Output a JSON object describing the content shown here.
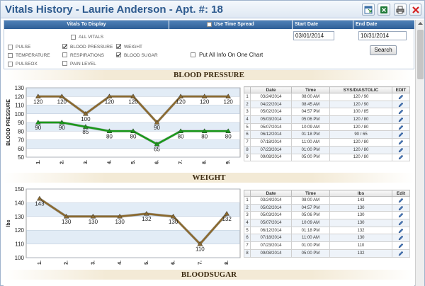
{
  "window": {
    "title": "Vitals History - Laurie Anderson - Apt. #: 18"
  },
  "toolbar": {
    "buttons": [
      "new-window-icon",
      "excel-export-icon",
      "print-icon",
      "save-icon",
      "close-icon"
    ]
  },
  "options": {
    "vitals_header": "Vitals To Display",
    "time_spread_label": "Use Time Spread",
    "start_date_header": "Start Date",
    "end_date_header": "End Date",
    "checkboxes": [
      {
        "label": "ALL VITALS",
        "checked": false
      },
      {
        "label": "PULSE",
        "checked": false
      },
      {
        "label": "BLOOD PRESSURE",
        "checked": true
      },
      {
        "label": "WEIGHT",
        "checked": true
      },
      {
        "label": "TEMPERATURE",
        "checked": false
      },
      {
        "label": "RESPIRATIONS",
        "checked": false
      },
      {
        "label": "BLOOD SUGAR",
        "checked": true
      },
      {
        "label": "PULSEOX",
        "checked": false
      },
      {
        "label": "PAIN LEVEL",
        "checked": false
      }
    ],
    "start_date": "03/01/2014",
    "end_date": "10/31/2014",
    "put_all_label": "Put All Info On One Chart",
    "search_label": "Search"
  },
  "sections": {
    "bp_title": "BLOOD PRESSURE",
    "weight_title": "WEIGHT",
    "sugar_title": "BLOODSUGAR"
  },
  "chart_data": [
    {
      "type": "line",
      "title": "BLOOD PRESSURE",
      "ylabel": "BLOOD PRESSURE",
      "x": [
        "1.",
        "2.",
        "3.",
        "4.",
        "5.",
        "6.",
        "7.",
        "8.",
        "9."
      ],
      "ylim": [
        50,
        130
      ],
      "yticks": [
        50,
        60,
        70,
        80,
        90,
        100,
        110,
        120,
        130
      ],
      "series": [
        {
          "values": [
            120,
            120,
            100,
            120,
            120,
            90,
            120,
            120,
            120
          ],
          "color": "#8b6a2f"
        },
        {
          "values": [
            90,
            90,
            85,
            80,
            80,
            65,
            80,
            80,
            80
          ],
          "color": "#1a9a1a"
        }
      ]
    },
    {
      "type": "line",
      "title": "WEIGHT",
      "ylabel": "lbs",
      "x": [
        "1.",
        "2.",
        "3.",
        "4.",
        "5.",
        "6.",
        "7.",
        "8."
      ],
      "ylim": [
        100,
        150
      ],
      "yticks": [
        100,
        110,
        120,
        130,
        140,
        150
      ],
      "series": [
        {
          "values": [
            143,
            130,
            130,
            130,
            132,
            130,
            110,
            132
          ],
          "color": "#8b6a2f"
        }
      ]
    }
  ],
  "bp_table": {
    "headers": [
      "",
      "Date",
      "Time",
      "SYS/DIASTOLIC",
      "EDIT"
    ],
    "rows": [
      [
        "1",
        "03/24/2014",
        "08:00 AM",
        "120 / 90"
      ],
      [
        "2",
        "04/22/2014",
        "08:45 AM",
        "120 / 90"
      ],
      [
        "3",
        "05/02/2014",
        "04:57 PM",
        "100 / 85"
      ],
      [
        "4",
        "05/03/2014",
        "05:06 PM",
        "120 / 80"
      ],
      [
        "5",
        "05/07/2014",
        "10:09 AM",
        "120 / 80"
      ],
      [
        "6",
        "06/12/2014",
        "01:18 PM",
        "90 / 65"
      ],
      [
        "7",
        "07/18/2014",
        "11:00 AM",
        "120 / 80"
      ],
      [
        "8",
        "07/23/2014",
        "01:00 PM",
        "120 / 80"
      ],
      [
        "9",
        "09/08/2014",
        "05:00 PM",
        "120 / 80"
      ]
    ]
  },
  "weight_table": {
    "headers": [
      "",
      "Date",
      "Time",
      "lbs",
      "Edit"
    ],
    "rows": [
      [
        "1",
        "03/24/2014",
        "08:00 AM",
        "143"
      ],
      [
        "2",
        "05/02/2014",
        "04:57 PM",
        "130"
      ],
      [
        "3",
        "05/03/2014",
        "05:06 PM",
        "130"
      ],
      [
        "4",
        "05/07/2014",
        "10:09 AM",
        "130"
      ],
      [
        "5",
        "06/12/2014",
        "01:18 PM",
        "132"
      ],
      [
        "6",
        "07/18/2014",
        "11:00 AM",
        "130"
      ],
      [
        "7",
        "07/23/2014",
        "01:00 PM",
        "110"
      ],
      [
        "8",
        "09/08/2014",
        "05:00 PM",
        "132"
      ]
    ]
  }
}
